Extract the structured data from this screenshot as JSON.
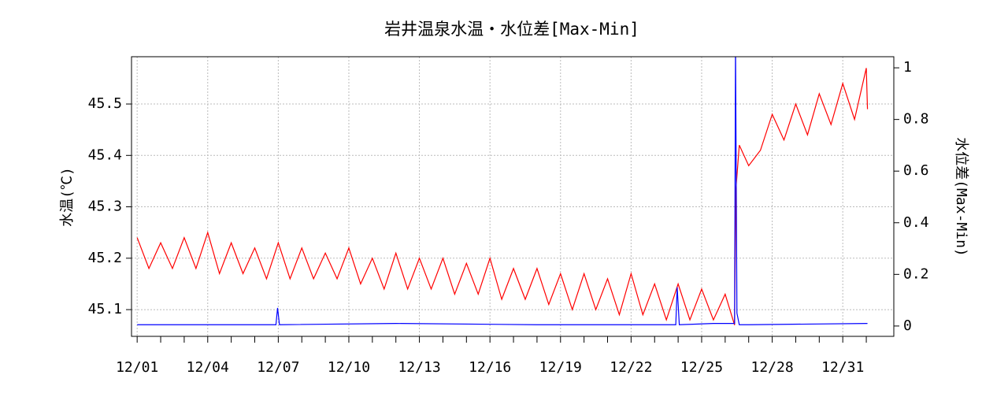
{
  "chart_data": {
    "type": "line",
    "title": "岩井温泉水温・水位差[Max-Min]",
    "ylabel": "水温(℃)",
    "y2label": "水位差(Max-Min)",
    "xlim": [
      0.76,
      33.17
    ],
    "xticks": [
      {
        "value": 1,
        "label": "12/01"
      },
      {
        "value": 4,
        "label": "12/04"
      },
      {
        "value": 7,
        "label": "12/07"
      },
      {
        "value": 10,
        "label": "12/10"
      },
      {
        "value": 13,
        "label": "12/13"
      },
      {
        "value": 16,
        "label": "12/16"
      },
      {
        "value": 19,
        "label": "12/19"
      },
      {
        "value": 22,
        "label": "12/22"
      },
      {
        "value": 25,
        "label": "12/25"
      },
      {
        "value": 28,
        "label": "12/28"
      },
      {
        "value": 31,
        "label": "12/31"
      }
    ],
    "xminorticks": [
      2,
      3,
      5,
      6,
      8,
      9,
      11,
      12,
      14,
      15,
      17,
      18,
      20,
      21,
      23,
      24,
      26,
      27,
      29,
      30,
      32
    ],
    "ylim": [
      45.048,
      45.592
    ],
    "yticks": [
      45.1,
      45.2,
      45.3,
      45.4,
      45.5
    ],
    "y2lim": [
      -0.04,
      1.043
    ],
    "y2ticks": [
      0.0,
      0.2,
      0.4,
      0.6,
      0.8,
      1.0
    ],
    "grid": true,
    "series": [
      {
        "color": "#ff0000",
        "x": [
          1,
          1.5,
          2,
          2.5,
          3,
          3.5,
          4,
          4.5,
          5,
          5.5,
          6,
          6.5,
          7,
          7.5,
          8,
          8.5,
          9,
          9.5,
          10,
          10.5,
          11,
          11.5,
          12,
          12.5,
          13,
          13.5,
          14,
          14.5,
          15,
          15.5,
          16,
          16.5,
          17,
          17.5,
          18,
          18.5,
          19,
          19.5,
          20,
          20.5,
          21,
          21.5,
          22,
          22.5,
          23,
          23.5,
          24,
          24.5,
          25,
          25.5,
          26,
          26.4,
          26.45,
          26.6,
          27,
          27.5,
          28,
          28.5,
          29,
          29.5,
          30,
          30.5,
          31,
          31.5,
          32,
          32.05
        ],
        "values": [
          45.24,
          45.18,
          45.23,
          45.18,
          45.24,
          45.18,
          45.25,
          45.17,
          45.23,
          45.17,
          45.22,
          45.16,
          45.23,
          45.16,
          45.22,
          45.16,
          45.21,
          45.16,
          45.22,
          45.15,
          45.2,
          45.14,
          45.21,
          45.14,
          45.2,
          45.14,
          45.2,
          45.13,
          45.19,
          45.13,
          45.2,
          45.12,
          45.18,
          45.12,
          45.18,
          45.11,
          45.17,
          45.1,
          45.17,
          45.1,
          45.16,
          45.09,
          45.17,
          45.09,
          45.15,
          45.08,
          45.15,
          45.08,
          45.14,
          45.08,
          45.13,
          45.07,
          45.33,
          45.42,
          45.38,
          45.41,
          45.48,
          45.43,
          45.5,
          45.44,
          45.52,
          45.46,
          45.54,
          45.47,
          45.57,
          45.49
        ]
      },
      {
        "color": "#0000ff",
        "axis": "y2",
        "x": [
          1,
          6.9,
          6.97,
          7.05,
          12,
          18,
          23.9,
          23.96,
          24.05,
          25.5,
          26.4,
          26.44,
          26.5,
          26.6,
          27,
          32.05
        ],
        "values": [
          0.005,
          0.005,
          0.07,
          0.005,
          0.01,
          0.005,
          0.005,
          0.15,
          0.005,
          0.01,
          0.01,
          1.1,
          0.05,
          0.005,
          0.005,
          0.01
        ]
      }
    ]
  }
}
